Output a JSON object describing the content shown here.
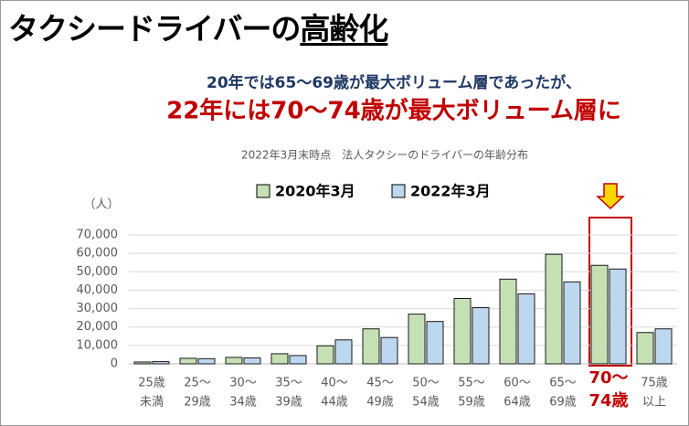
{
  "title": "タクシードライバーの",
  "title_emphasis": "高齢化",
  "subtitle": "20年では65～69歳が最大ボリューム層であったが、",
  "headline": "22年には70～74歳が最大ボリューム層に",
  "chart_data": {
    "type": "bar",
    "title": "2022年3月末時点　法人タクシーのドライバーの年齢分布",
    "y_unit": "（人）",
    "categories": [
      [
        "25歳",
        "未満"
      ],
      [
        "25～",
        "29歳"
      ],
      [
        "30～",
        "34歳"
      ],
      [
        "35～",
        "39歳"
      ],
      [
        "40～",
        "44歳"
      ],
      [
        "45～",
        "49歳"
      ],
      [
        "50～",
        "54歳"
      ],
      [
        "55～",
        "59歳"
      ],
      [
        "60～",
        "64歳"
      ],
      [
        "65～",
        "69歳"
      ],
      [
        "70～",
        "74歳"
      ],
      [
        "75歳",
        "以上"
      ]
    ],
    "series": [
      {
        "name": "2020年3月",
        "color": "#c5e0b4",
        "values": [
          1000,
          3000,
          3500,
          5500,
          9800,
          19000,
          27000,
          35500,
          46000,
          59500,
          53500,
          17000
        ]
      },
      {
        "name": "2022年3月",
        "color": "#bdd7ee",
        "values": [
          1200,
          2800,
          3200,
          4500,
          13000,
          14300,
          23000,
          30500,
          38000,
          44500,
          51500,
          19000
        ]
      }
    ],
    "ylim": [
      0,
      70000
    ],
    "yticks": [
      0,
      {
        "value": 10000,
        "label": "10,000"
      },
      {
        "value": 20000,
        "label": "20,000"
      },
      {
        "value": 30000,
        "label": "30,000"
      },
      {
        "value": 40000,
        "label": "40,000"
      },
      {
        "value": 50000,
        "label": "50,000"
      },
      {
        "value": 60000,
        "label": "60,000"
      },
      {
        "value": 70000,
        "label": "70,000"
      }
    ],
    "grid": true
  }
}
